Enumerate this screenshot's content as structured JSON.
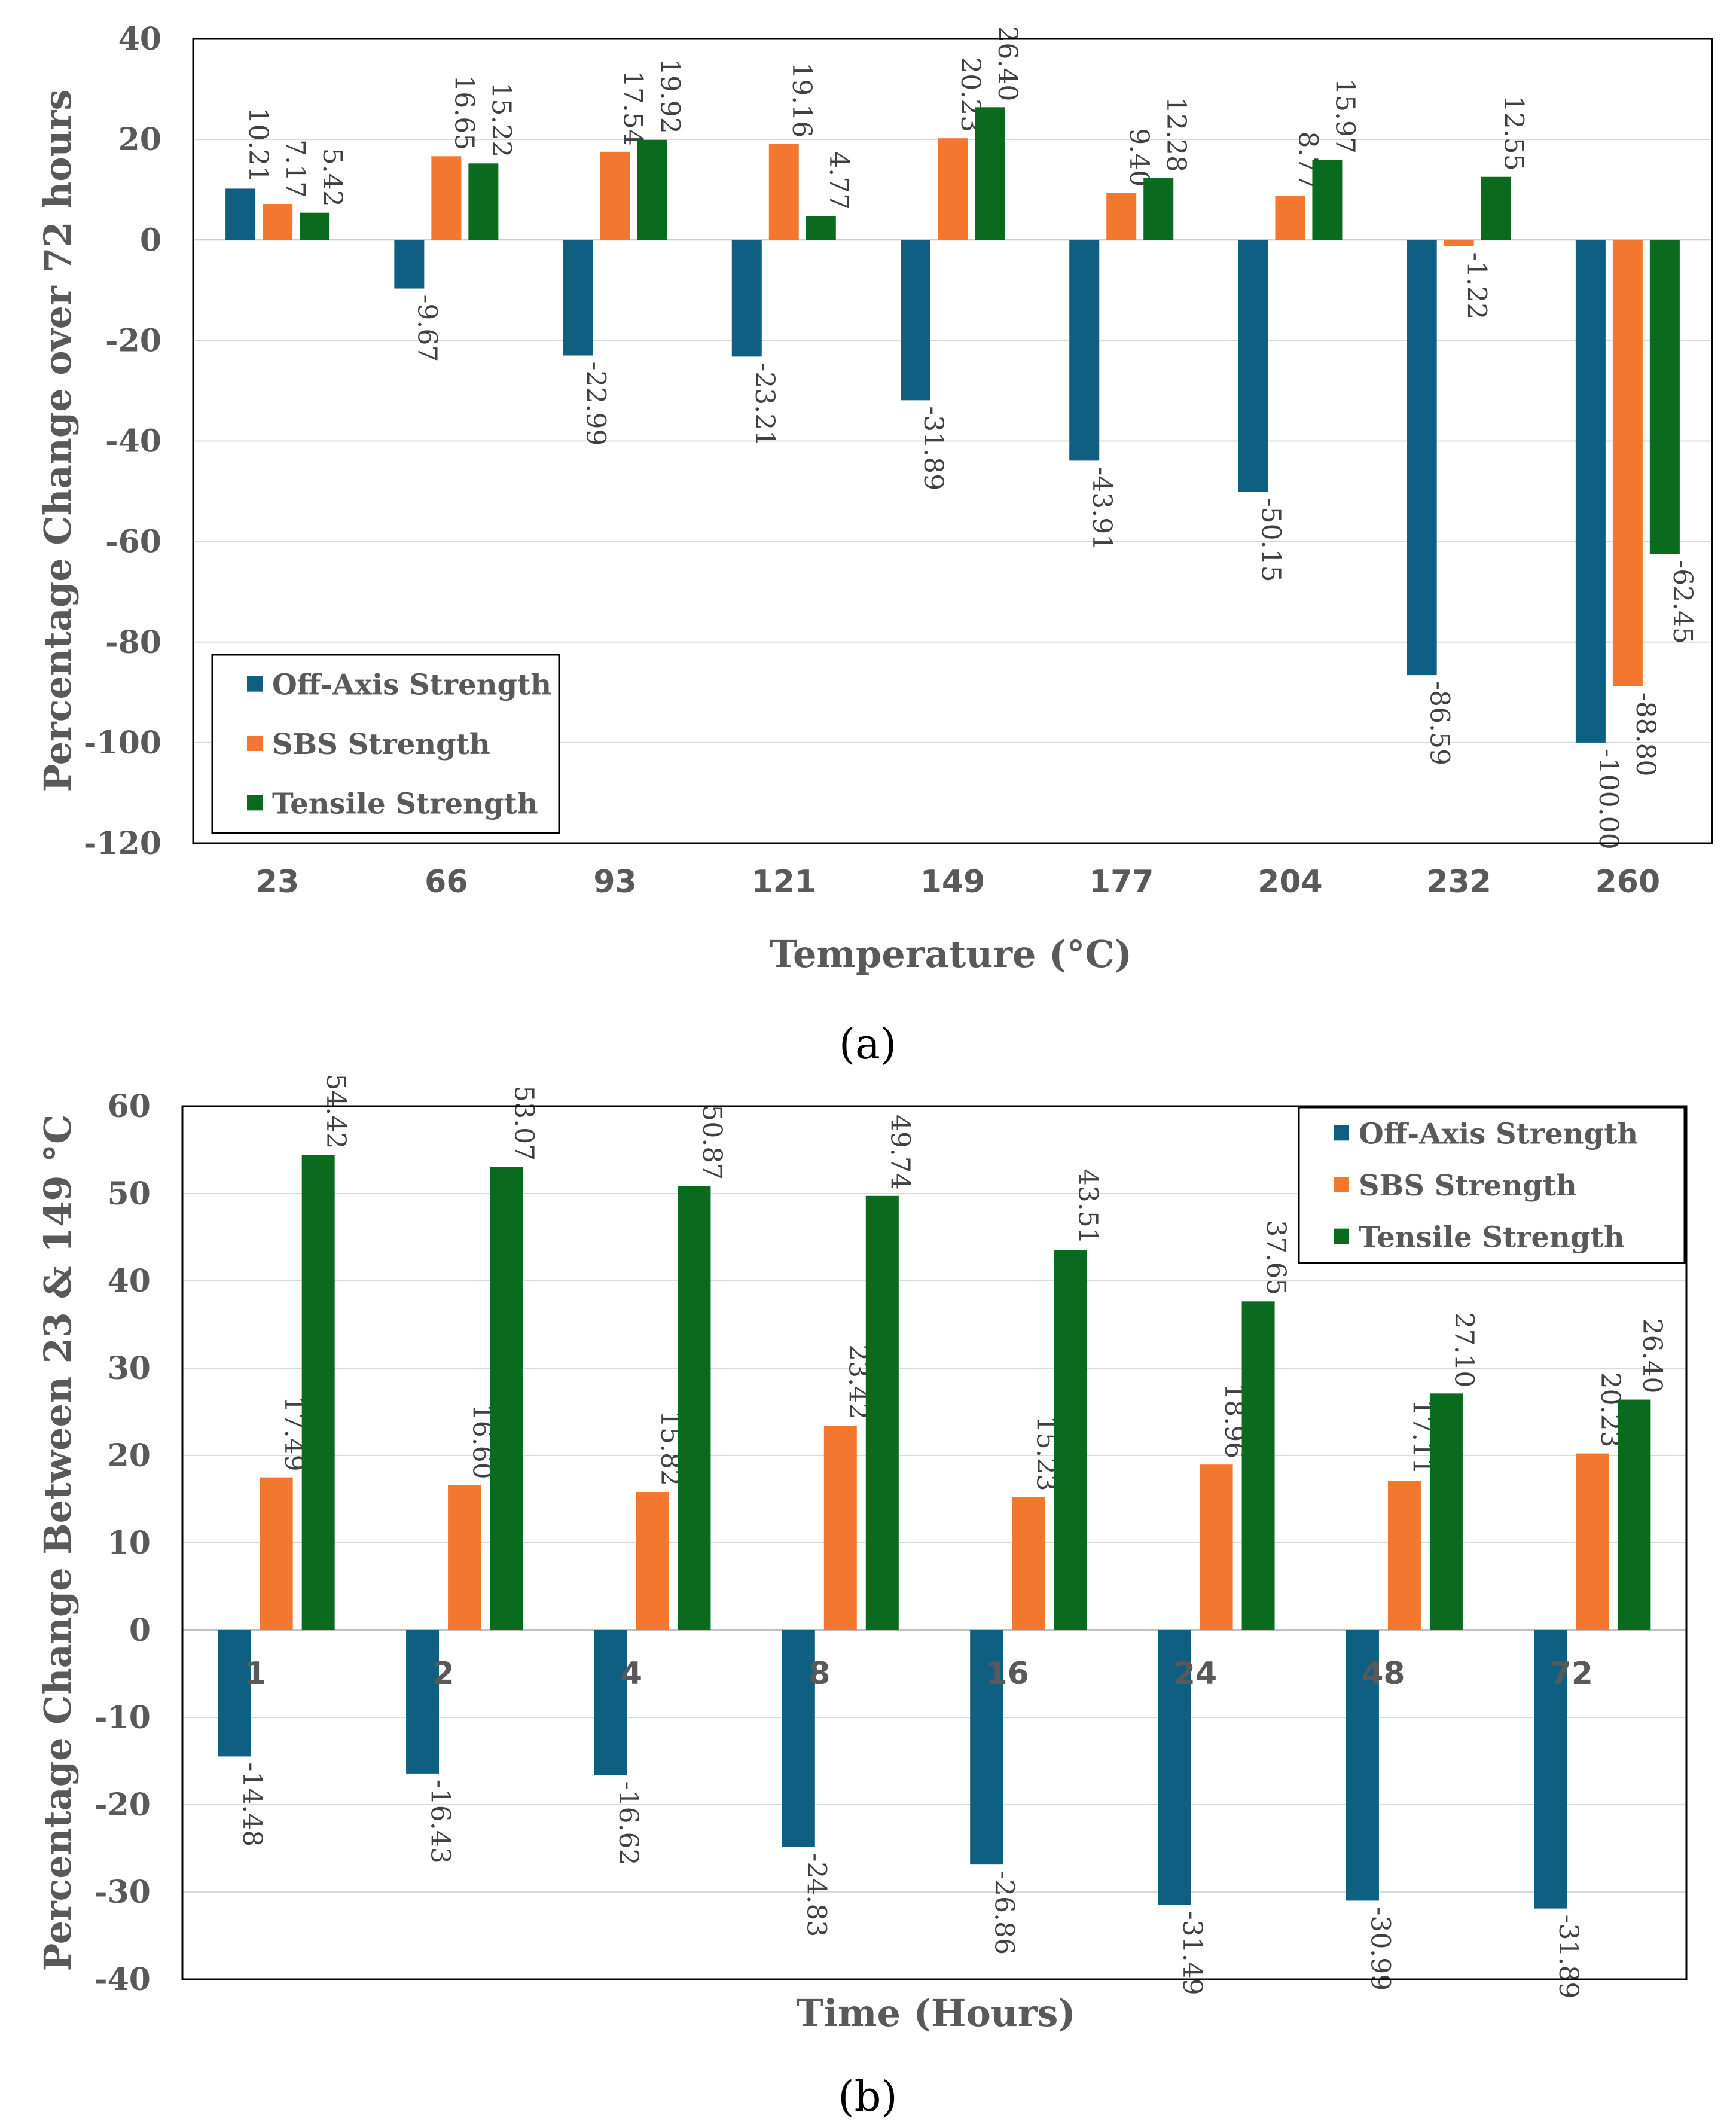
{
  "chart_data": [
    {
      "type": "bar",
      "panel_label": "a",
      "title": "",
      "xlabel": "Temperature (°C)",
      "ylabel": "Percentage Change over 72 hours",
      "ylim": [
        -120,
        40
      ],
      "yticks": [
        40,
        20,
        0,
        -20,
        -40,
        -60,
        -80,
        -100,
        -120
      ],
      "grid": true,
      "legend_position": "bottom-left",
      "categories": [
        "23",
        "66",
        "93",
        "121",
        "149",
        "177",
        "204",
        "232",
        "260"
      ],
      "series": [
        {
          "name": "Off-Axis Strength",
          "color": "#0f5f83",
          "values": [
            10.21,
            -9.67,
            -22.99,
            -23.21,
            -31.89,
            -43.91,
            -50.15,
            -86.59,
            -100.0
          ],
          "labels": [
            "10.21",
            "-9.67",
            "-22.99",
            "-23.21",
            "-31.89",
            "-43.91",
            "-50.15",
            "-86.59",
            "-100.00"
          ]
        },
        {
          "name": "SBS Strength",
          "color": "#f4772f",
          "values": [
            7.17,
            16.65,
            17.54,
            19.16,
            20.23,
            9.4,
            8.77,
            -1.22,
            -88.8
          ],
          "labels": [
            "7.17",
            "16.65",
            "17.54",
            "19.16",
            "20.23",
            "9.40",
            "8.77",
            "-1.22",
            "-88.80"
          ]
        },
        {
          "name": "Tensile Strength",
          "color": "#0a6b1e",
          "values": [
            5.42,
            15.22,
            19.92,
            4.77,
            26.4,
            12.28,
            15.97,
            12.55,
            -62.45
          ],
          "labels": [
            "5.42",
            "15.22",
            "19.92",
            "4.77",
            "26.40",
            "12.28",
            "15.97",
            "12.55",
            "-62.45"
          ]
        }
      ]
    },
    {
      "type": "bar",
      "panel_label": "b",
      "title": "",
      "xlabel": "Time (Hours)",
      "ylabel": "Percentage Change Between 23 & 149 °C",
      "ylim": [
        -40,
        60
      ],
      "yticks": [
        60,
        50,
        40,
        30,
        20,
        10,
        0,
        -10,
        -20,
        -30,
        -40
      ],
      "grid": true,
      "legend_position": "top-right",
      "categories": [
        "1",
        "2",
        "4",
        "8",
        "16",
        "24",
        "48",
        "72"
      ],
      "series": [
        {
          "name": "Off-Axis Strength",
          "color": "#0f5f83",
          "values": [
            -14.48,
            -16.43,
            -16.62,
            -24.83,
            -26.86,
            -31.49,
            -30.99,
            -31.89
          ],
          "labels": [
            "-14.48",
            "-16.43",
            "-16.62",
            "-24.83",
            "-26.86",
            "-31.49",
            "-30.99",
            "-31.89"
          ]
        },
        {
          "name": "SBS Strength",
          "color": "#f4772f",
          "values": [
            17.49,
            16.6,
            15.82,
            23.42,
            15.23,
            18.96,
            17.11,
            20.23
          ],
          "labels": [
            "17.49",
            "16.60",
            "15.82",
            "23.42",
            "15.23",
            "18.96",
            "17.11",
            "20.23"
          ]
        },
        {
          "name": "Tensile Strength",
          "color": "#0a6b1e",
          "values": [
            54.42,
            53.07,
            50.87,
            49.74,
            43.51,
            37.65,
            27.1,
            26.4
          ],
          "labels": [
            "54.42",
            "53.07",
            "50.87",
            "49.74",
            "43.51",
            "37.65",
            "27.10",
            "26.40"
          ]
        }
      ]
    }
  ]
}
